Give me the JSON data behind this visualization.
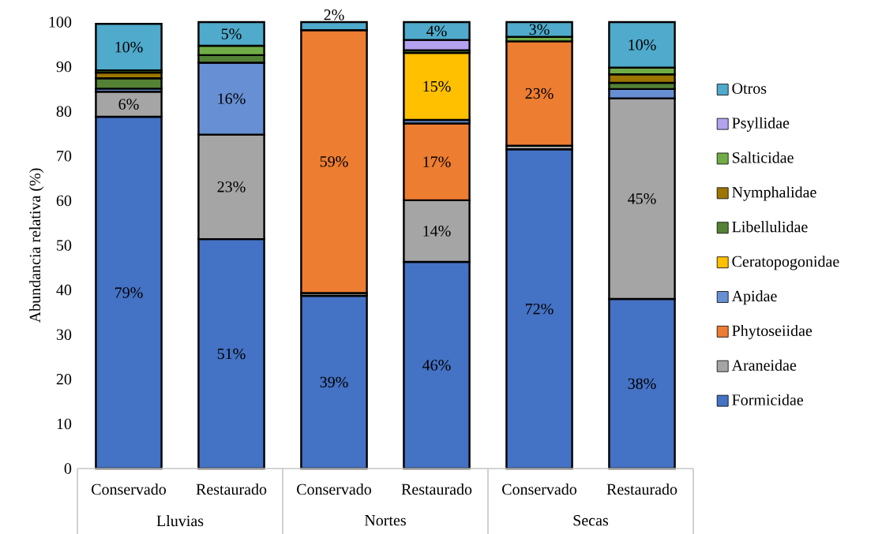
{
  "chart_data": {
    "type": "bar",
    "stacked": true,
    "ylabel": "Abundancia relativa (%)",
    "categories": [
      "Conservado",
      "Restaurado",
      "Conservado",
      "Restaurado",
      "Conservado",
      "Restaurado"
    ],
    "annotations": [
      "Lluvias",
      "Nortes",
      "Secas"
    ],
    "ylim": [
      0,
      100
    ],
    "yticks": [
      0,
      10,
      20,
      30,
      40,
      50,
      60,
      70,
      80,
      90,
      100
    ],
    "legend": "right",
    "series": [
      {
        "name": "Formicidae",
        "color": "#4472c4",
        "values": [
          78.8,
          51.4,
          38.7,
          46.3,
          71.5,
          38.0
        ],
        "value_labels": [
          "79%",
          "51%",
          "39%",
          "46%",
          "72%",
          "38%"
        ]
      },
      {
        "name": "Araneidae",
        "color": "#a5a5a5",
        "values": [
          5.6,
          23.4,
          0.6,
          13.8,
          0.8,
          44.9
        ],
        "value_labels": [
          "6%",
          "23%",
          null,
          "14%",
          null,
          "45%"
        ]
      },
      {
        "name": "Phytoseiidae",
        "color": "#ed7d31",
        "values": [
          null,
          null,
          58.9,
          17.2,
          23.4,
          null
        ],
        "value_labels": [
          null,
          null,
          "59%",
          "17%",
          "23%",
          null
        ]
      },
      {
        "name": "Apidae",
        "color": "#678fd3",
        "values": [
          0.7,
          16.1,
          null,
          0.8,
          null,
          2.1
        ],
        "value_labels": [
          null,
          "16%",
          null,
          null,
          null,
          null
        ]
      },
      {
        "name": "Ceratopogonidae",
        "color": "#ffc000",
        "values": [
          null,
          null,
          null,
          15.0,
          null,
          null
        ],
        "value_labels": [
          null,
          null,
          null,
          "15%",
          null,
          null
        ]
      },
      {
        "name": "Libellulidae",
        "color": "#548235",
        "values": [
          2.3,
          1.7,
          null,
          0.6,
          null,
          1.4
        ]
      },
      {
        "name": "Nymphalidae",
        "color": "#9c7600",
        "values": [
          1.3,
          null,
          null,
          null,
          null,
          1.9
        ]
      },
      {
        "name": "Salticidae",
        "color": "#70ad47",
        "values": [
          0.5,
          2.1,
          null,
          null,
          1.0,
          1.5
        ]
      },
      {
        "name": "Psyllidae",
        "color": "#b4a2ee",
        "values": [
          null,
          null,
          null,
          2.3,
          null,
          null
        ]
      },
      {
        "name": "Otros",
        "color": "#4faacb",
        "values": [
          10.4,
          5.3,
          1.8,
          4.0,
          3.3,
          10.2
        ],
        "value_labels": [
          "10%",
          "5%",
          "2%",
          "4%",
          "3%",
          "10%"
        ]
      }
    ]
  }
}
